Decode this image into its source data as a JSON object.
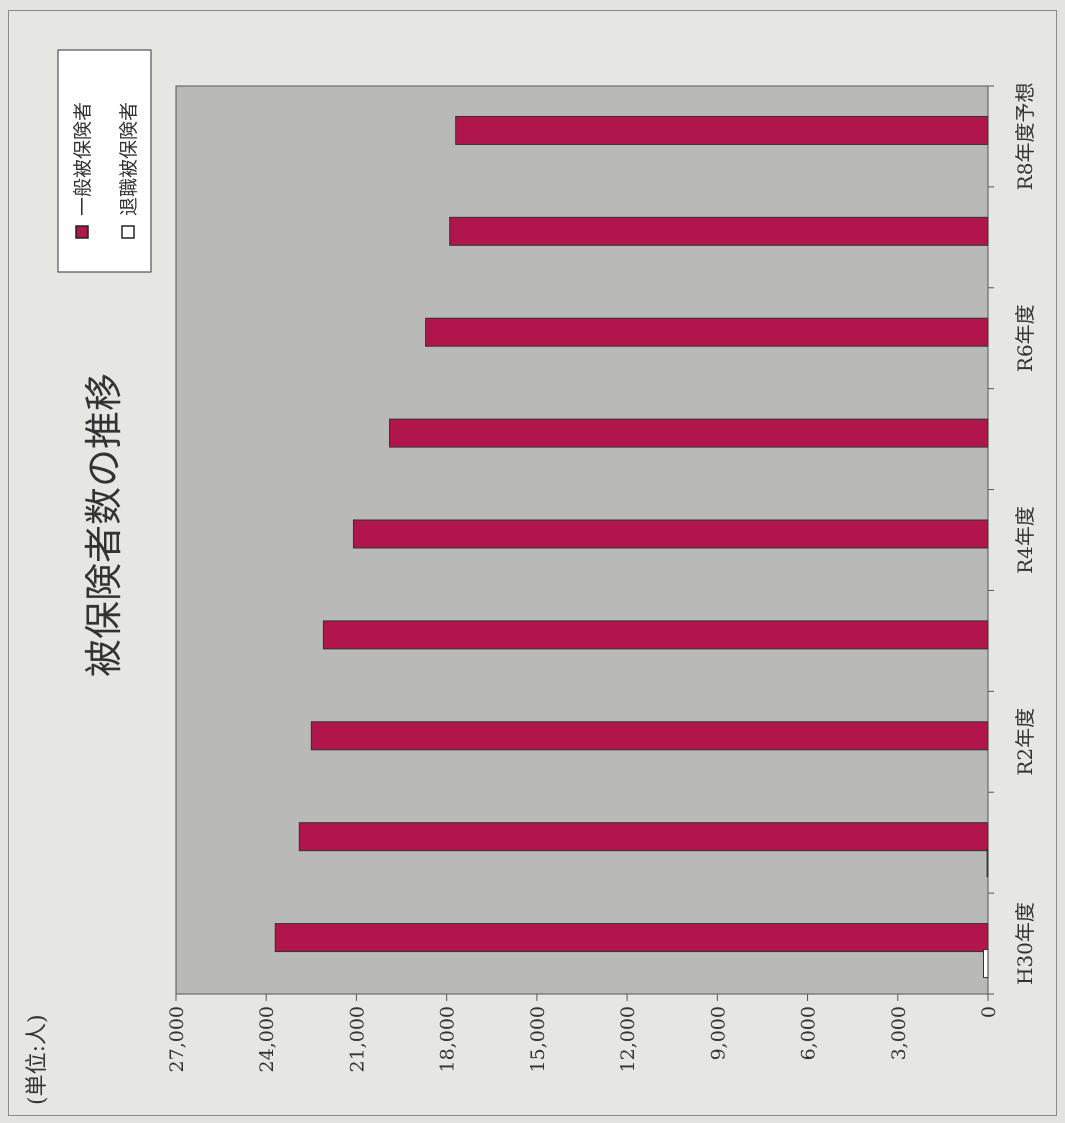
{
  "chart_data": {
    "type": "bar",
    "orientation": "vertical bars, page rotated 90° clockwise",
    "title": "被保険者数の推移",
    "unit_label": "(単位:人)",
    "categories": [
      "H30年度",
      "",
      "R2年度",
      "",
      "R4年度",
      "",
      "R6年度",
      "",
      "R8年度予想"
    ],
    "series": [
      {
        "name": "一般被保険者",
        "color": "#b0164c",
        "values": [
          23700,
          22900,
          22500,
          22100,
          21100,
          19900,
          18700,
          17900,
          17700
        ]
      },
      {
        "name": "退職被保険者",
        "color": "#ffffff",
        "values": [
          150,
          30,
          0,
          0,
          0,
          0,
          0,
          0,
          0
        ]
      }
    ],
    "yticks": [
      "0",
      "3,000",
      "6,000",
      "9,000",
      "12,000",
      "15,000",
      "18,000",
      "21,000",
      "24,000",
      "27,000"
    ],
    "ylim": [
      0,
      27000
    ],
    "grid": false,
    "legend_position": "top-right",
    "plot_background": "#b9b9b7"
  }
}
